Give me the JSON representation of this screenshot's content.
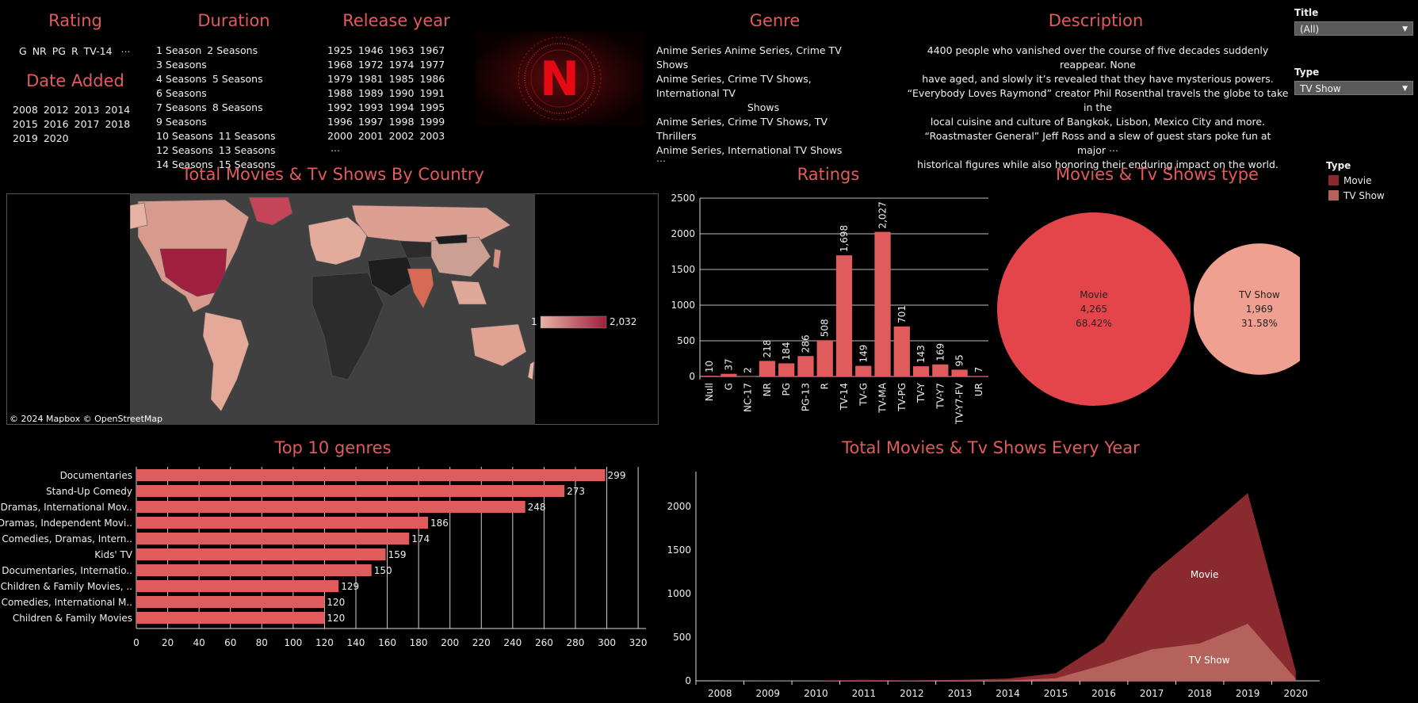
{
  "filters": {
    "rating": {
      "title": "Rating",
      "items": [
        "G",
        "NR",
        "PG",
        "R",
        "TV-14"
      ],
      "more": "⋯"
    },
    "date_added": {
      "title": "Date Added",
      "items": [
        "2008",
        "2012",
        "2013",
        "2014",
        "2015",
        "2016",
        "2017",
        "2018",
        "2019",
        "2020"
      ]
    },
    "duration": {
      "title": "Duration",
      "rows": [
        [
          "1 Season",
          "2 Seasons",
          "3 Seasons"
        ],
        [
          "4 Seasons",
          "5 Seasons",
          "6 Seasons"
        ],
        [
          "7 Seasons",
          "8 Seasons",
          "9 Seasons"
        ],
        [
          "10 Seasons",
          "11 Seasons"
        ],
        [
          "12 Seasons",
          "13 Seasons"
        ],
        [
          "14 Seasons",
          "15 Seasons"
        ]
      ]
    },
    "release_year": {
      "title": "Release year",
      "rows": [
        [
          "1925",
          "1946",
          "1963",
          "1967"
        ],
        [
          "1968",
          "1972",
          "1974",
          "1977"
        ],
        [
          "1979",
          "1981",
          "1985",
          "1986"
        ],
        [
          "1988",
          "1989",
          "1990",
          "1991"
        ],
        [
          "1992",
          "1993",
          "1994",
          "1995"
        ],
        [
          "1996",
          "1997",
          "1998",
          "1999"
        ],
        [
          "2000",
          "2001",
          "2002",
          "2003"
        ]
      ],
      "more": "⋯"
    },
    "genre": {
      "title": "Genre",
      "items": [
        "Anime Series   Anime Series, Crime TV Shows",
        "Anime Series, Crime TV Shows, International TV",
        "Shows",
        "Anime Series, Crime TV Shows, TV Thrillers",
        "Anime Series, International TV Shows"
      ],
      "more": "⋯"
    },
    "description": {
      "title": "Description",
      "items": [
        "4400 people who vanished over the course of five decades suddenly reappear. None",
        "have aged, and slowly it’s revealed that they have mysterious powers.",
        "“Everybody Loves Raymond” creator Phil Rosenthal travels the globe to take in the",
        "local cuisine and culture of Bangkok, Lisbon, Mexico City and more.",
        "“Roastmaster General” Jeff Ross and a slew of guest stars poke fun at major",
        "historical figures while also honoring their enduring impact on the world."
      ],
      "more": "⋯"
    }
  },
  "logo": {
    "letter": "N"
  },
  "controls": {
    "title": {
      "label": "Title",
      "value": "(All)"
    },
    "type": {
      "label": "Type",
      "value": "TV Show"
    }
  },
  "legend": {
    "title": "Type",
    "items": [
      {
        "label": "Movie",
        "color": "#8b2a2e"
      },
      {
        "label": "TV Show",
        "color": "#b5625c"
      }
    ]
  },
  "map": {
    "title": "Total Movies & Tv Shows By Country",
    "attribution": "© 2024 Mapbox  © OpenStreetMap",
    "scale_min": "1",
    "scale_max": "2,032",
    "colors": {
      "low": "#e7b2a3",
      "high": "#a01f3e",
      "land": "#2c2c2c",
      "water": "#404040"
    }
  },
  "chart_data": [
    {
      "id": "ratings",
      "type": "bar",
      "title": "Ratings",
      "categories": [
        "Null",
        "G",
        "NC-17",
        "NR",
        "PG",
        "PG-13",
        "R",
        "TV-14",
        "TV-G",
        "TV-MA",
        "TV-PG",
        "TV-Y",
        "TV-Y7",
        "TV-Y7-FV",
        "UR"
      ],
      "values": [
        10,
        37,
        2,
        218,
        184,
        286,
        508,
        1698,
        149,
        2027,
        701,
        143,
        169,
        95,
        7
      ],
      "labels": [
        "10",
        "37",
        "2",
        "218",
        "184",
        "286",
        "508",
        "1,698",
        "149",
        "2,027",
        "701",
        "143",
        "169",
        "95",
        "7"
      ],
      "yticks": [
        0,
        500,
        1000,
        1500,
        2000,
        2500
      ],
      "ylim": [
        0,
        2500
      ],
      "color": "#e05c5c",
      "grid": true
    },
    {
      "id": "type",
      "type": "pie",
      "title": "Movies & Tv Shows type",
      "items": [
        {
          "label": "Movie",
          "value": 4265,
          "display": "4,265",
          "percent": "68.42%",
          "color": "#e4454a"
        },
        {
          "label": "TV Show",
          "value": 1969,
          "display": "1,969",
          "percent": "31.58%",
          "color": "#f0a090"
        }
      ]
    },
    {
      "id": "genres",
      "type": "bar",
      "orientation": "horizontal",
      "title": "Top 10 genres",
      "categories": [
        "Documentaries",
        "Stand-Up Comedy",
        "Dramas, International Mov..",
        "Dramas, Independent Movi..",
        "Comedies, Dramas, Intern..",
        "Kids' TV",
        "Documentaries, Internatio..",
        "Children & Family Movies, ..",
        "Comedies, International M..",
        "Children & Family Movies"
      ],
      "values": [
        299,
        273,
        248,
        186,
        174,
        159,
        150,
        129,
        120,
        120
      ],
      "xticks": [
        0,
        20,
        40,
        60,
        80,
        100,
        120,
        140,
        160,
        180,
        200,
        220,
        240,
        260,
        280,
        300,
        320
      ],
      "xlim": [
        0,
        325
      ],
      "color": "#e05c5c",
      "grid": true
    },
    {
      "id": "yearly",
      "type": "area",
      "title": "Total Movies & Tv Shows Every Year",
      "x": [
        "2008",
        "2009",
        "2010",
        "2011",
        "2012",
        "2013",
        "2014",
        "2015",
        "2016",
        "2017",
        "2018",
        "2019",
        "2020"
      ],
      "series": [
        {
          "name": "Movie",
          "values": [
            1,
            2,
            1,
            13,
            3,
            6,
            19,
            58,
            258,
            864,
            1255,
            1497,
            88
          ],
          "color": "#8b2a2e"
        },
        {
          "name": "TV Show",
          "values": [
            1,
            0,
            1,
            0,
            1,
            5,
            6,
            30,
            185,
            361,
            430,
            656,
            25
          ],
          "color": "#b5625c"
        }
      ],
      "yticks": [
        0,
        500,
        1000,
        1500,
        2000
      ],
      "ylim": [
        0,
        2400
      ],
      "stacked": true
    }
  ]
}
